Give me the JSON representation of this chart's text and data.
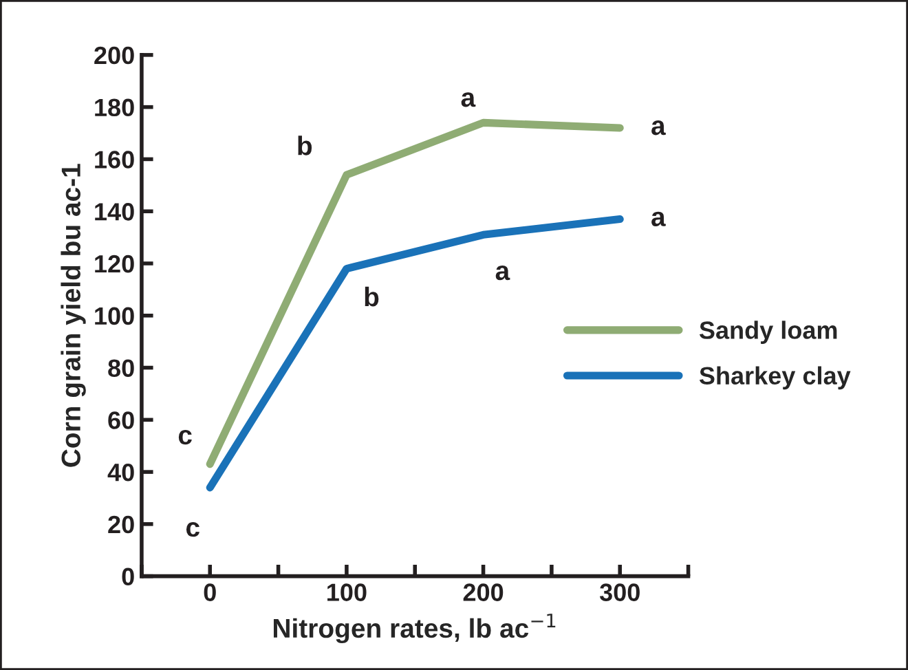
{
  "chart_data": {
    "type": "line",
    "xlabel": "Nitrogen rates, lb ac$^{−1}$",
    "ylabel": "Corn grain yield bu ac-1",
    "x": [
      0,
      100,
      200,
      300
    ],
    "series": [
      {
        "name": "Sandy loam",
        "color": "#8fac74",
        "values": [
          43,
          154,
          174,
          172
        ]
      },
      {
        "name": "Sharkey clay",
        "color": "#1a72b8",
        "values": [
          34,
          118,
          131,
          137
        ]
      }
    ],
    "xlim": [
      -50,
      350
    ],
    "xticks": [
      {
        "value": -50,
        "label": null
      },
      0,
      {
        "value": 50,
        "label": null
      },
      100,
      {
        "value": 150,
        "label": null
      },
      200,
      {
        "value": 250,
        "label": null
      },
      300,
      {
        "value": 350,
        "label": null
      }
    ],
    "ylim": [
      0,
      200
    ],
    "yticks": [
      0,
      20,
      40,
      60,
      80,
      100,
      120,
      140,
      160,
      180,
      200
    ],
    "grid": false,
    "legend": "right",
    "marker": "none",
    "line_style": "solid",
    "annotations": [
      {
        "text": "c",
        "x": 0,
        "y": 43
      },
      {
        "text": "c",
        "x": 0,
        "y": 34
      },
      {
        "text": "b",
        "x": 100,
        "y": 154
      },
      {
        "text": "b",
        "x": 100,
        "y": 118
      },
      {
        "text": "a",
        "x": 200,
        "y": 174
      },
      {
        "text": "a",
        "x": 200,
        "y": 131
      },
      {
        "text": "a",
        "x": 300,
        "y": 172
      },
      {
        "text": "a",
        "x": 300,
        "y": 137
      }
    ]
  }
}
